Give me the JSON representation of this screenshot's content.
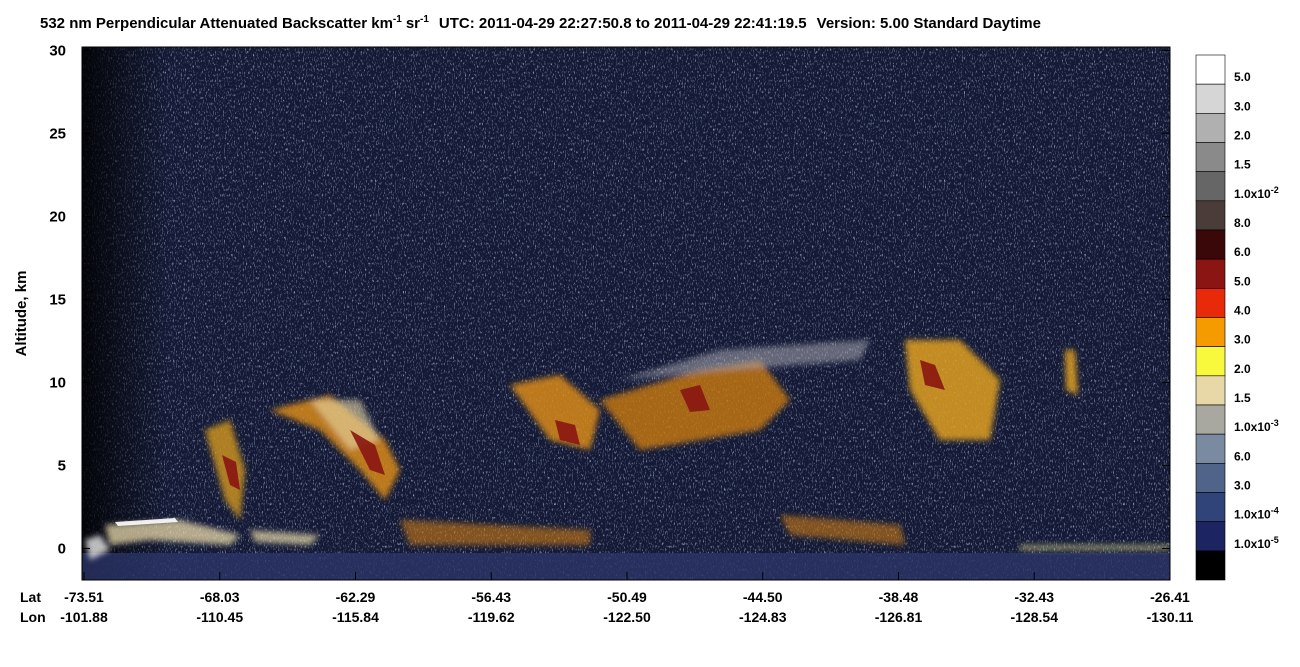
{
  "chart_data": {
    "type": "heatmap",
    "title_parts": [
      "532 nm Perpendicular Attenuated Backscatter km",
      "-1",
      "sr",
      "-1",
      "UTC: 2011-04-29 22:27:50.8 to 2011-04-29 22:41:19.5",
      "Version: 5.00 Standard Daytime"
    ],
    "y_label": "Altitude, km",
    "ylim": [
      -1.9,
      30.2
    ],
    "yticks": [
      0,
      5,
      10,
      15,
      20,
      25,
      30
    ],
    "x_row_labels": [
      "Lat",
      "Lon"
    ],
    "lat": [
      "-73.51",
      "-68.03",
      "-62.29",
      "-56.43",
      "-50.49",
      "-44.50",
      "-38.48",
      "-32.43",
      "-26.41"
    ],
    "lon": [
      "-101.88",
      "-110.45",
      "-115.84",
      "-119.62",
      "-122.50",
      "-124.83",
      "-126.81",
      "-128.54",
      "-130.11"
    ],
    "colorbar": {
      "colors": [
        "#ffffff",
        "#d6d6d6",
        "#b0b0b0",
        "#8a8a8a",
        "#666666",
        "#4a3c38",
        "#3a0808",
        "#8a1512",
        "#e82a0a",
        "#f59b00",
        "#f8f83c",
        "#e8d8a8",
        "#a8a8a0",
        "#7a8aa0",
        "#50648a",
        "#30447a",
        "#1c2462",
        "#000000"
      ],
      "labels": [
        {
          "text": "5.0"
        },
        {
          "text": "3.0"
        },
        {
          "text": "2.0"
        },
        {
          "text": "1.5"
        },
        {
          "text": "1.0x10",
          "exp": "-2"
        },
        {
          "text": "8.0"
        },
        {
          "text": "6.0"
        },
        {
          "text": "5.0"
        },
        {
          "text": "4.0"
        },
        {
          "text": "3.0"
        },
        {
          "text": "2.0"
        },
        {
          "text": "1.5"
        },
        {
          "text": "1.0x10",
          "exp": "-3"
        },
        {
          "text": "6.0"
        },
        {
          "text": "3.0"
        },
        {
          "text": "1.0x10",
          "exp": "-4"
        },
        {
          "text": "1.0x10",
          "exp": "-5"
        }
      ]
    }
  }
}
